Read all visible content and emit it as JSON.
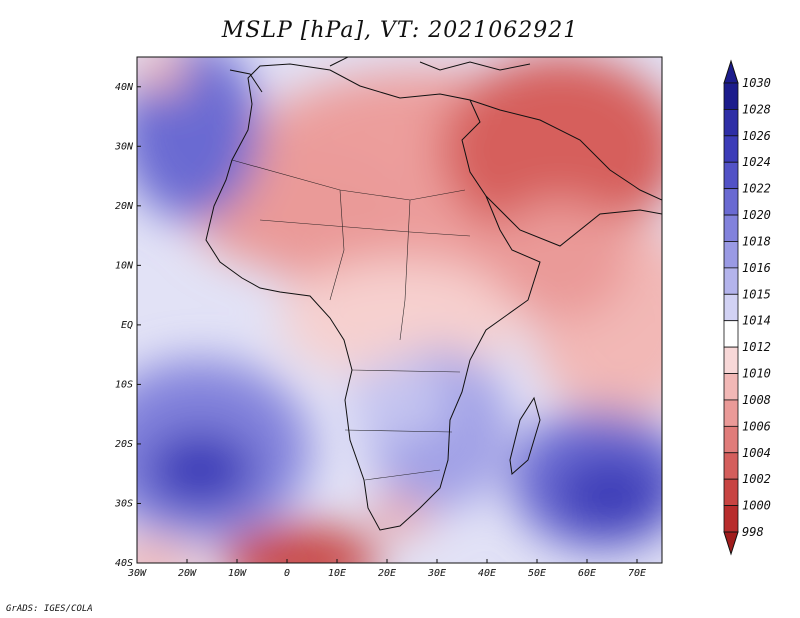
{
  "title": "MSLP [hPa], VT: 2021062921",
  "map": {
    "lat_labels": [
      "40N",
      "30N",
      "20N",
      "10N",
      "EQ",
      "10S",
      "20S",
      "30S",
      "40S"
    ],
    "lon_labels": [
      "30W",
      "20W",
      "10W",
      "0",
      "10E",
      "20E",
      "30E",
      "40E",
      "50E",
      "60E",
      "70E"
    ],
    "extent": {
      "lon_min": -30,
      "lon_max": 75,
      "lat_min": -40,
      "lat_max": 45
    }
  },
  "colorbar": {
    "levels": [
      "1030",
      "1028",
      "1026",
      "1024",
      "1022",
      "1020",
      "1018",
      "1016",
      "1015",
      "1014",
      "1012",
      "1010",
      "1008",
      "1006",
      "1004",
      "1002",
      "1000",
      "998"
    ],
    "colors": [
      "#1c1c8c",
      "#2e2ea6",
      "#3c3cb8",
      "#5252c6",
      "#6a6ad2",
      "#8282dc",
      "#9a9ae4",
      "#b4b4ec",
      "#d2d2f4",
      "#ffffff",
      "#f8d8d8",
      "#f2b8b6",
      "#ea9a98",
      "#e07c7a",
      "#d45e5c",
      "#c84442",
      "#b82c2c",
      "#a01c1c"
    ]
  },
  "credit": "GrADS: IGES/COLA"
}
